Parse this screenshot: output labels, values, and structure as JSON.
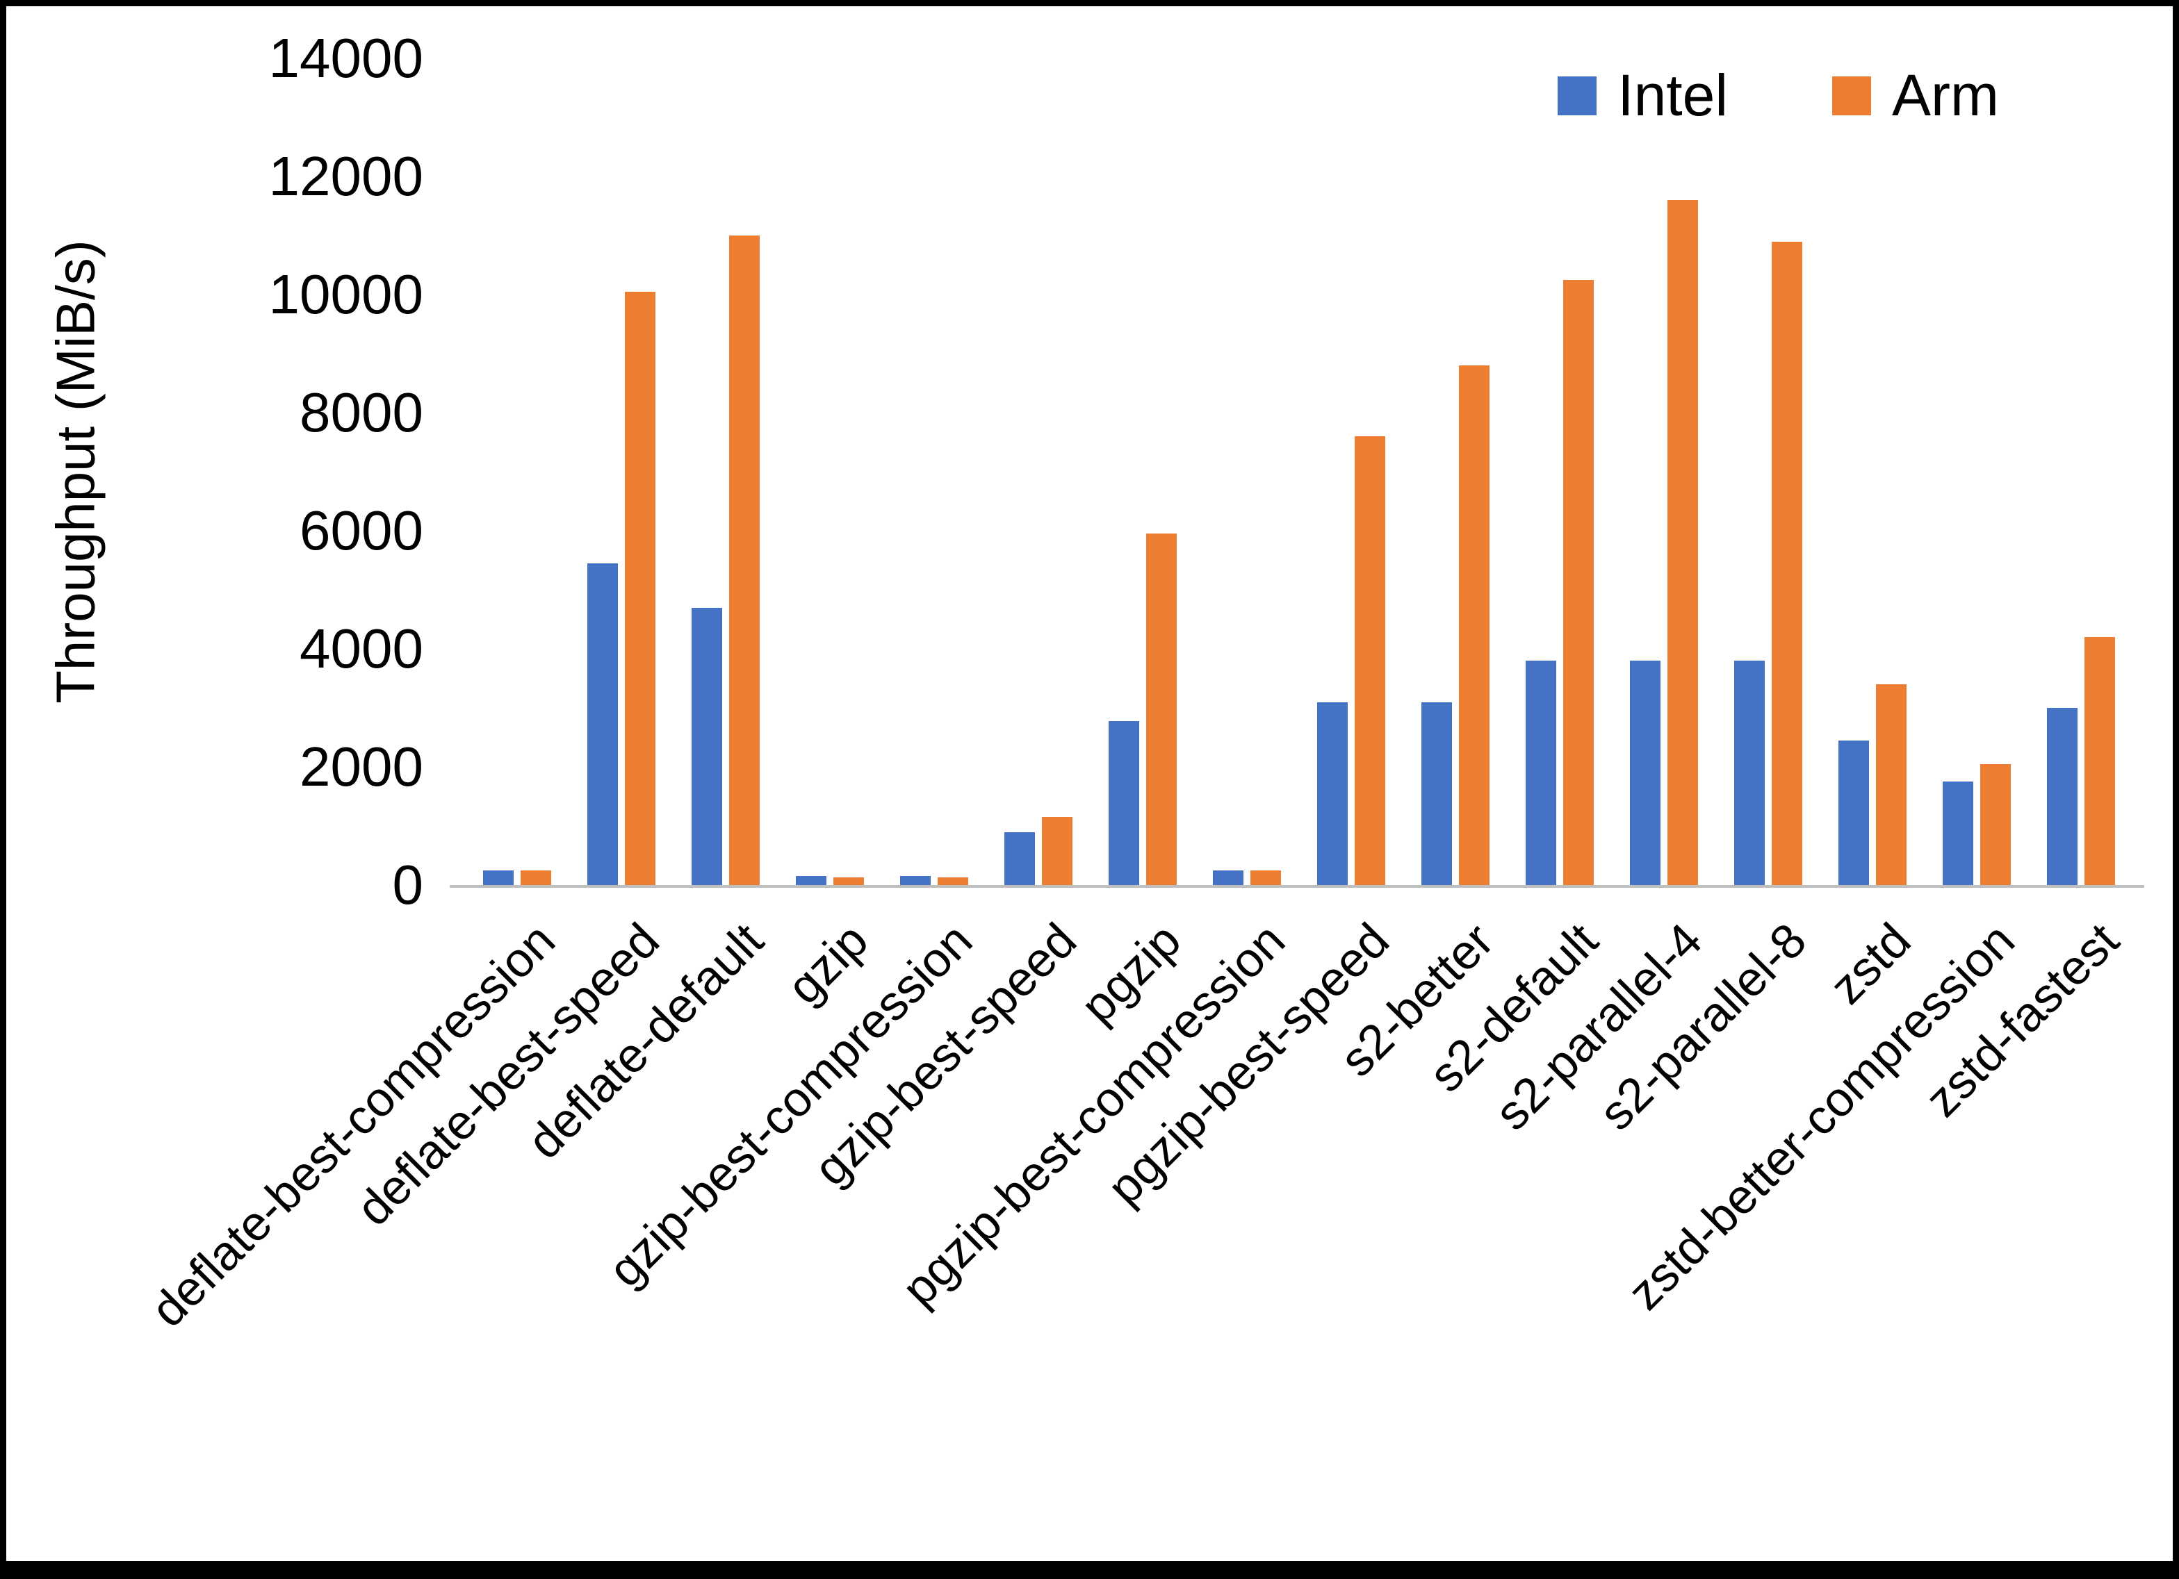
{
  "chart_data": {
    "type": "bar",
    "title": "",
    "xlabel": "",
    "ylabel": "Throughput (MiB/s)",
    "ylim": [
      0,
      14000
    ],
    "ytick_step": 2000,
    "grid": false,
    "legend_position": "top-right",
    "categories": [
      "deflate-best-compression",
      "deflate-best-speed",
      "deflate-default",
      "gzip",
      "gzip-best-compression",
      "gzip-best-speed",
      "pgzip",
      "pgzip-best-compression",
      "pgzip-best-speed",
      "s2-better",
      "s2-default",
      "s2-parallel-4",
      "s2-parallel-8",
      "zstd",
      "zstd-better-compression",
      "zstd-fastest"
    ],
    "series": [
      {
        "name": "Intel",
        "color": "#4472C4",
        "values": [
          250,
          5450,
          4700,
          150,
          150,
          900,
          2780,
          250,
          3100,
          3100,
          3800,
          3800,
          3800,
          2450,
          1750,
          3000
        ]
      },
      {
        "name": "Arm",
        "color": "#ED7D31",
        "values": [
          250,
          10050,
          11000,
          130,
          130,
          1150,
          5950,
          250,
          7600,
          8800,
          10250,
          11600,
          10900,
          3400,
          2050,
          4200
        ]
      }
    ]
  }
}
